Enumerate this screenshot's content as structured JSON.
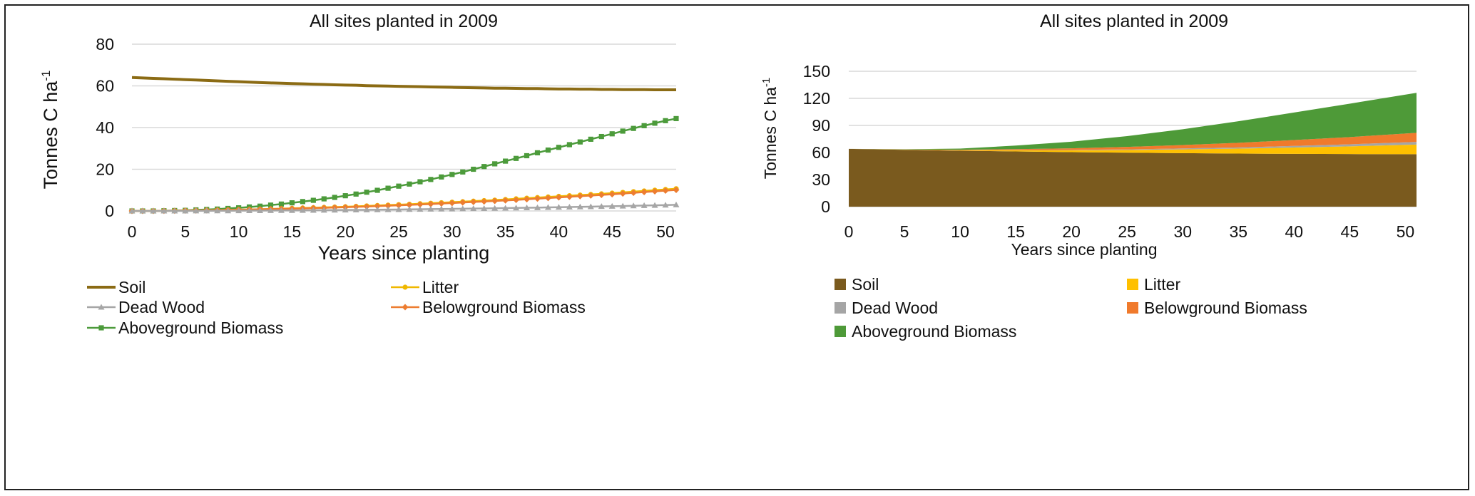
{
  "chart_data": [
    {
      "type": "line",
      "title": "All sites planted in 2009",
      "xlabel": "Years since planting",
      "ylabel": "Tonnes C ha-1",
      "ylabel_main": "Tonnes C ha",
      "ylabel_sup": "-1",
      "xlim": [
        0,
        51
      ],
      "ylim": [
        0,
        80
      ],
      "x_ticks": [
        "0",
        "5",
        "10",
        "15",
        "20",
        "25",
        "30",
        "35",
        "40",
        "45",
        "50"
      ],
      "y_ticks": [
        "0",
        "20",
        "40",
        "60",
        "80"
      ],
      "grid": true,
      "legend_position": "bottom",
      "series": [
        {
          "name": "Soil",
          "color": "#8B6B14",
          "marker": "none",
          "values": [
            64,
            63.8,
            63.6,
            63.4,
            63.2,
            63.0,
            62.8,
            62.6,
            62.4,
            62.2,
            62.0,
            61.8,
            61.6,
            61.4,
            61.3,
            61.1,
            61.0,
            60.8,
            60.7,
            60.5,
            60.4,
            60.3,
            60.1,
            60.0,
            59.9,
            59.8,
            59.7,
            59.6,
            59.5,
            59.4,
            59.3,
            59.2,
            59.1,
            59.0,
            58.9,
            58.9,
            58.8,
            58.7,
            58.7,
            58.6,
            58.5,
            58.5,
            58.4,
            58.4,
            58.3,
            58.3,
            58.2,
            58.2,
            58.2,
            58.1,
            58.1,
            58.1
          ]
        },
        {
          "name": "Litter",
          "color": "#F0B800",
          "marker": "circle",
          "values": [
            0,
            0,
            0,
            0.05,
            0.1,
            0.15,
            0.2,
            0.3,
            0.4,
            0.5,
            0.6,
            0.7,
            0.8,
            0.95,
            1.1,
            1.25,
            1.4,
            1.55,
            1.7,
            1.85,
            2.0,
            2.2,
            2.4,
            2.6,
            2.8,
            3.0,
            3.2,
            3.45,
            3.7,
            3.95,
            4.2,
            4.45,
            4.7,
            4.95,
            5.2,
            5.5,
            5.8,
            6.1,
            6.4,
            6.7,
            7.0,
            7.3,
            7.6,
            7.9,
            8.2,
            8.55,
            8.9,
            9.25,
            9.6,
            9.95,
            10.3,
            10.65
          ]
        },
        {
          "name": "Dead Wood",
          "color": "#A6A6A6",
          "marker": "triangle",
          "values": [
            0,
            0,
            0,
            0,
            0,
            0.02,
            0.04,
            0.06,
            0.08,
            0.1,
            0.12,
            0.15,
            0.18,
            0.21,
            0.24,
            0.27,
            0.3,
            0.34,
            0.38,
            0.42,
            0.46,
            0.5,
            0.55,
            0.6,
            0.65,
            0.7,
            0.76,
            0.82,
            0.88,
            0.94,
            1.0,
            1.07,
            1.14,
            1.21,
            1.28,
            1.36,
            1.44,
            1.52,
            1.6,
            1.69,
            1.78,
            1.87,
            1.96,
            2.06,
            2.16,
            2.26,
            2.37,
            2.48,
            2.59,
            2.71,
            2.83,
            2.95
          ]
        },
        {
          "name": "Belowground Biomass",
          "color": "#ED7D31",
          "marker": "diamond",
          "values": [
            0,
            0,
            0,
            0.05,
            0.1,
            0.15,
            0.2,
            0.3,
            0.4,
            0.5,
            0.6,
            0.7,
            0.8,
            0.9,
            1.0,
            1.1,
            1.2,
            1.35,
            1.5,
            1.65,
            1.8,
            1.95,
            2.1,
            2.3,
            2.5,
            2.7,
            2.9,
            3.1,
            3.3,
            3.55,
            3.8,
            4.05,
            4.3,
            4.55,
            4.8,
            5.05,
            5.3,
            5.6,
            5.9,
            6.2,
            6.5,
            6.8,
            7.1,
            7.4,
            7.7,
            8.0,
            8.35,
            8.7,
            9.05,
            9.4,
            9.75,
            10.1
          ]
        },
        {
          "name": "Aboveground Biomass",
          "color": "#4C9B3B",
          "marker": "square",
          "values": [
            0,
            0,
            0,
            0.1,
            0.2,
            0.3,
            0.5,
            0.7,
            0.9,
            1.2,
            1.5,
            1.9,
            2.3,
            2.8,
            3.3,
            3.9,
            4.5,
            5.1,
            5.8,
            6.5,
            7.3,
            8.1,
            9.0,
            9.9,
            10.9,
            11.9,
            12.9,
            14.0,
            15.1,
            16.3,
            17.5,
            18.7,
            20.0,
            21.3,
            22.6,
            23.9,
            25.2,
            26.5,
            27.9,
            29.2,
            30.5,
            31.8,
            33.1,
            34.4,
            35.7,
            37.0,
            38.3,
            39.6,
            40.9,
            42.1,
            43.3,
            44.3
          ]
        }
      ]
    },
    {
      "type": "area",
      "stacked": true,
      "title": "All sites planted in 2009",
      "xlabel": "Years since planting",
      "ylabel": "Tonnes C ha-1",
      "ylabel_main": "Tonnes C ha",
      "ylabel_sup": "-1",
      "xlim": [
        0,
        51
      ],
      "ylim": [
        0,
        150
      ],
      "x_ticks": [
        "0",
        "5",
        "10",
        "15",
        "20",
        "25",
        "30",
        "35",
        "40",
        "45",
        "50"
      ],
      "y_ticks": [
        "0",
        "30",
        "60",
        "90",
        "120",
        "150"
      ],
      "grid": true,
      "legend_position": "bottom",
      "x": [
        0,
        5,
        10,
        15,
        20,
        25,
        30,
        35,
        40,
        45,
        51
      ],
      "series": [
        {
          "name": "Soil",
          "color": "#7A5A1E",
          "values": [
            64,
            63.0,
            62.0,
            61.2,
            60.4,
            59.8,
            59.3,
            58.8,
            58.5,
            58.3,
            58.1
          ]
        },
        {
          "name": "Litter",
          "color": "#FFC000",
          "values": [
            0,
            0.15,
            0.5,
            1.2,
            2.0,
            3.0,
            4.2,
            5.5,
            7.0,
            8.55,
            10.65
          ]
        },
        {
          "name": "Dead Wood",
          "color": "#A5A5A5",
          "values": [
            0,
            0.02,
            0.1,
            0.27,
            0.46,
            0.7,
            1.0,
            1.36,
            1.78,
            2.26,
            2.95
          ]
        },
        {
          "name": "Belowground Biomass",
          "color": "#F07A2C",
          "values": [
            0,
            0.15,
            0.5,
            1.1,
            1.8,
            2.7,
            3.8,
            5.05,
            6.5,
            8.0,
            10.1
          ]
        },
        {
          "name": "Aboveground Biomass",
          "color": "#4E9A38",
          "values": [
            0,
            0.3,
            1.2,
            3.9,
            7.3,
            12.0,
            17.5,
            23.9,
            30.5,
            37.0,
            44.3
          ]
        }
      ]
    }
  ]
}
